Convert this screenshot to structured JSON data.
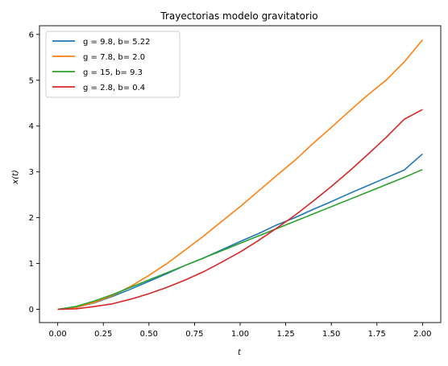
{
  "chart_data": {
    "type": "line",
    "title": "Trayectorias modelo gravitatorio",
    "xlabel": "t",
    "ylabel": "x(t)",
    "xlim": [
      -0.1,
      2.1
    ],
    "ylim": [
      -0.29,
      6.19
    ],
    "xticks": [
      0.0,
      0.25,
      0.5,
      0.75,
      1.0,
      1.25,
      1.5,
      1.75,
      2.0
    ],
    "xtick_labels": [
      "0.00",
      "0.25",
      "0.50",
      "0.75",
      "1.00",
      "1.25",
      "1.50",
      "1.75",
      "2.00"
    ],
    "yticks": [
      0,
      1,
      2,
      3,
      4,
      5,
      6
    ],
    "ytick_labels": [
      "0",
      "1",
      "2",
      "3",
      "4",
      "5",
      "6"
    ],
    "grid": false,
    "legend_position": "top-left",
    "series": [
      {
        "name": "g = 9.8, b= 5.22",
        "color": "#1f77b4",
        "x": [
          0.0,
          0.1,
          0.2,
          0.3,
          0.4,
          0.5,
          0.6,
          0.7,
          0.8,
          0.9,
          1.0,
          1.1,
          1.2,
          1.3,
          1.4,
          1.5,
          1.6,
          1.7,
          1.8,
          1.9,
          2.0
        ],
        "y": [
          0.0,
          0.04,
          0.14,
          0.28,
          0.44,
          0.61,
          0.78,
          0.96,
          1.12,
          1.3,
          1.48,
          1.65,
          1.84,
          2.0,
          2.18,
          2.35,
          2.53,
          2.7,
          2.87,
          3.04,
          3.39
        ]
      },
      {
        "name": "g = 7.8, b= 2.0",
        "color": "#ff7f0e",
        "x": [
          0.0,
          0.1,
          0.2,
          0.3,
          0.4,
          0.5,
          0.6,
          0.7,
          0.8,
          0.9,
          1.0,
          1.1,
          1.2,
          1.3,
          1.4,
          1.5,
          1.6,
          1.7,
          1.8,
          1.9,
          2.0
        ],
        "y": [
          0.0,
          0.04,
          0.15,
          0.3,
          0.5,
          0.74,
          1.0,
          1.3,
          1.6,
          1.92,
          2.24,
          2.58,
          2.92,
          3.25,
          3.62,
          3.97,
          4.33,
          4.68,
          5.0,
          5.4,
          5.88
        ]
      },
      {
        "name": "g = 15, b= 9.3",
        "color": "#2ca02c",
        "x": [
          0.0,
          0.1,
          0.2,
          0.3,
          0.4,
          0.5,
          0.6,
          0.7,
          0.8,
          0.9,
          1.0,
          1.1,
          1.2,
          1.3,
          1.4,
          1.5,
          1.6,
          1.7,
          1.8,
          1.9,
          2.0
        ],
        "y": [
          0.0,
          0.06,
          0.18,
          0.32,
          0.48,
          0.64,
          0.8,
          0.96,
          1.12,
          1.28,
          1.44,
          1.6,
          1.76,
          1.92,
          2.08,
          2.24,
          2.4,
          2.56,
          2.72,
          2.88,
          3.05
        ]
      },
      {
        "name": "g = 2.8, b= 0.4",
        "color": "#d62728",
        "x": [
          0.0,
          0.1,
          0.2,
          0.3,
          0.4,
          0.5,
          0.6,
          0.7,
          0.8,
          0.9,
          1.0,
          1.1,
          1.2,
          1.3,
          1.4,
          1.5,
          1.6,
          1.7,
          1.8,
          1.9,
          2.0
        ],
        "y": [
          0.0,
          0.01,
          0.06,
          0.12,
          0.22,
          0.34,
          0.48,
          0.64,
          0.82,
          1.03,
          1.25,
          1.5,
          1.77,
          2.05,
          2.36,
          2.68,
          3.02,
          3.38,
          3.75,
          4.15,
          4.36
        ]
      }
    ]
  }
}
